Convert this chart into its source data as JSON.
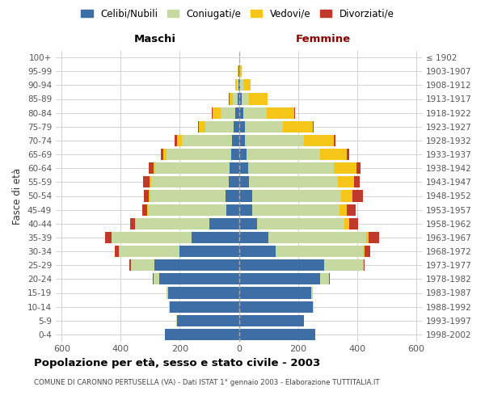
{
  "age_groups": [
    "0-4",
    "5-9",
    "10-14",
    "15-19",
    "20-24",
    "25-29",
    "30-34",
    "35-39",
    "40-44",
    "45-49",
    "50-54",
    "55-59",
    "60-64",
    "65-69",
    "70-74",
    "75-79",
    "80-84",
    "85-89",
    "90-94",
    "95-99",
    "100+"
  ],
  "birth_years": [
    "1998-2002",
    "1993-1997",
    "1988-1992",
    "1983-1987",
    "1978-1982",
    "1973-1977",
    "1968-1972",
    "1963-1967",
    "1958-1962",
    "1953-1957",
    "1948-1952",
    "1943-1947",
    "1938-1942",
    "1933-1937",
    "1928-1932",
    "1923-1927",
    "1918-1922",
    "1913-1917",
    "1908-1912",
    "1903-1907",
    "≤ 1902"
  ],
  "maschi_celibe": [
    250,
    210,
    235,
    240,
    270,
    285,
    200,
    160,
    100,
    42,
    45,
    33,
    32,
    25,
    22,
    18,
    12,
    5,
    2,
    1,
    0
  ],
  "maschi_coniugato": [
    0,
    1,
    2,
    5,
    20,
    80,
    205,
    270,
    250,
    265,
    255,
    265,
    250,
    220,
    170,
    95,
    50,
    15,
    5,
    1,
    0
  ],
  "maschi_vedovo": [
    0,
    0,
    0,
    0,
    0,
    1,
    2,
    2,
    2,
    3,
    4,
    5,
    8,
    10,
    17,
    22,
    28,
    12,
    5,
    1,
    0
  ],
  "maschi_divorziato": [
    0,
    0,
    0,
    0,
    2,
    5,
    12,
    22,
    15,
    16,
    18,
    22,
    15,
    8,
    8,
    4,
    2,
    1,
    0,
    0,
    0
  ],
  "femmine_nubile": [
    260,
    220,
    250,
    245,
    275,
    290,
    125,
    100,
    62,
    45,
    45,
    35,
    32,
    25,
    20,
    20,
    15,
    10,
    5,
    2,
    1
  ],
  "femmine_coniugata": [
    0,
    1,
    2,
    5,
    30,
    130,
    295,
    330,
    295,
    295,
    300,
    300,
    290,
    250,
    200,
    130,
    80,
    25,
    10,
    2,
    0
  ],
  "femmine_vedova": [
    0,
    0,
    0,
    0,
    1,
    2,
    5,
    10,
    18,
    25,
    40,
    55,
    75,
    90,
    102,
    100,
    92,
    62,
    25,
    5,
    1
  ],
  "femmine_divorziata": [
    0,
    0,
    0,
    0,
    2,
    5,
    20,
    35,
    30,
    30,
    35,
    20,
    15,
    8,
    5,
    3,
    2,
    1,
    0,
    0,
    0
  ],
  "color_celibe": "#3d6fa6",
  "color_coniugato": "#c5d9a0",
  "color_vedovo": "#f5c518",
  "color_divorziato": "#c0392b",
  "xlim": 620,
  "xticks": [
    -600,
    -400,
    -200,
    0,
    200,
    400,
    600
  ],
  "title": "Popolazione per età, sesso e stato civile - 2003",
  "subtitle": "COMUNE DI CARONNO PERTUSELLA (VA) - Dati ISTAT 1° gennaio 2003 - Elaborazione TUTTITALIA.IT",
  "legend_labels": [
    "Celibi/Nubili",
    "Coniugati/e",
    "Vedovi/e",
    "Divorziati/e"
  ],
  "ylabel_left": "Fasce di età",
  "label_maschi": "Maschi",
  "label_femmine": "Femmine"
}
